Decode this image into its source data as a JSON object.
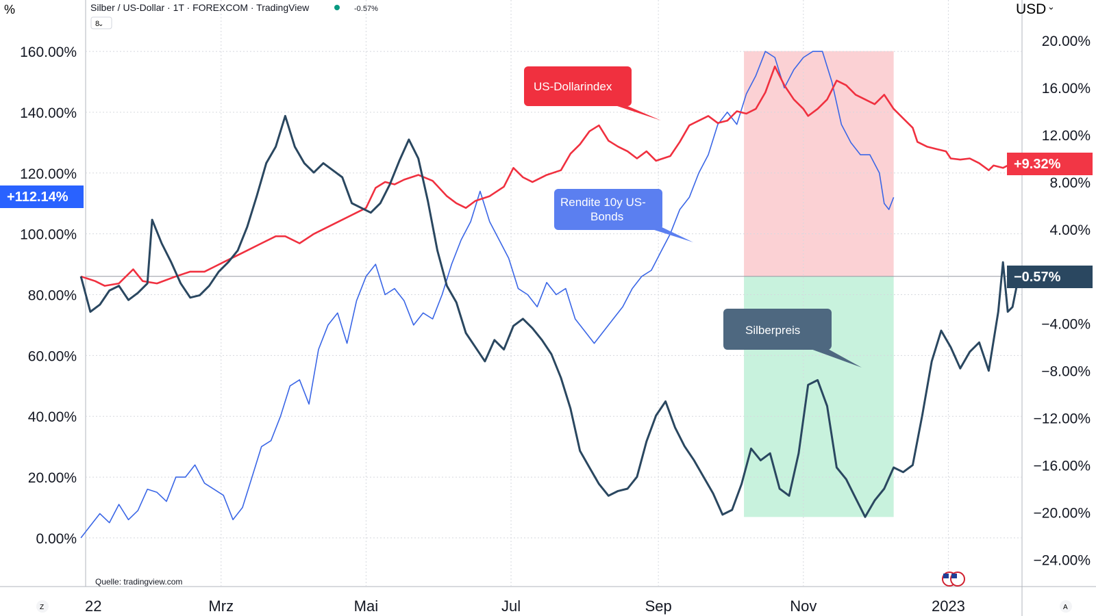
{
  "header": {
    "title": "Silber / US-Dollar · 1T · FOREXCOM · TradingView",
    "change": "-0.57%",
    "indicator_count": "8",
    "left_unit": "%",
    "right_unit": "USD",
    "right_unit_caret": "⌄",
    "source": "Quelle: tradingview.com",
    "corner_left": "Z",
    "corner_right": "A"
  },
  "colors": {
    "silver": "#2a4760",
    "dollar": "#f0303f",
    "yield": "#3a66e6",
    "red_zone": "#fbd1d4",
    "green_zone": "#c8f2dd",
    "grid": "#d5d8de"
  },
  "icons": {
    "flag": "us-flags-icon",
    "dot": "status-dot-icon"
  },
  "badges": {
    "left": "+112.14%",
    "right_red": "+9.32%",
    "right_dark": "−0.57%"
  },
  "callouts": {
    "dollar": "US-Dollarindex",
    "yield_line1": "Rendite 10y US-",
    "yield_line2": "Bonds",
    "silver": "Silberpreis"
  },
  "chart_data": {
    "type": "line",
    "x_ticks": [
      "22",
      "Mrz",
      "Mai",
      "Jul",
      "Sep",
      "Nov",
      "2023"
    ],
    "x_tick_days": [
      0,
      59,
      120,
      181,
      243,
      304,
      365
    ],
    "y_left_ticks": [
      "0.00%",
      "20.00%",
      "40.00%",
      "60.00%",
      "80.00%",
      "100.00%",
      "120.00%",
      "140.00%",
      "160.00%"
    ],
    "y_left_values": [
      0,
      20,
      40,
      60,
      80,
      100,
      120,
      140,
      160
    ],
    "y_left_range": [
      -16,
      176
    ],
    "y_right_ticks": [
      "20.00%",
      "16.00%",
      "12.00%",
      "8.00%",
      "4.00%",
      "−4.00%",
      "−8.00%",
      "−12.00%",
      "−16.00%",
      "−20.00%",
      "−24.00%"
    ],
    "y_right_values": [
      20,
      16,
      12,
      8,
      4,
      -4,
      -8,
      -12,
      -16,
      -20,
      -24
    ],
    "y_right_range": [
      -26.3,
      23.2
    ],
    "zones": {
      "red": {
        "x": [
          279,
          342
        ],
        "y": [
          0,
          19.1
        ]
      },
      "green": {
        "x": [
          279,
          342
        ],
        "y": [
          -20.4,
          0
        ]
      }
    },
    "series": [
      {
        "name": "Rendite 10y US-Bonds",
        "axis": "left",
        "points": [
          [
            0,
            0
          ],
          [
            4,
            4
          ],
          [
            8,
            8
          ],
          [
            12,
            5
          ],
          [
            16,
            11
          ],
          [
            20,
            6
          ],
          [
            24,
            9
          ],
          [
            28,
            16
          ],
          [
            32,
            15
          ],
          [
            36,
            12
          ],
          [
            40,
            20
          ],
          [
            44,
            20
          ],
          [
            48,
            24
          ],
          [
            52,
            18
          ],
          [
            56,
            16
          ],
          [
            60,
            14
          ],
          [
            64,
            6
          ],
          [
            68,
            10
          ],
          [
            72,
            20
          ],
          [
            76,
            30
          ],
          [
            80,
            32
          ],
          [
            84,
            40
          ],
          [
            88,
            50
          ],
          [
            92,
            52
          ],
          [
            96,
            44
          ],
          [
            100,
            62
          ],
          [
            104,
            70
          ],
          [
            108,
            74
          ],
          [
            112,
            64
          ],
          [
            116,
            78
          ],
          [
            120,
            86
          ],
          [
            124,
            90
          ],
          [
            128,
            80
          ],
          [
            132,
            82
          ],
          [
            136,
            78
          ],
          [
            140,
            70
          ],
          [
            144,
            74
          ],
          [
            148,
            72
          ],
          [
            152,
            80
          ],
          [
            156,
            90
          ],
          [
            160,
            98
          ],
          [
            164,
            104
          ],
          [
            168,
            114
          ],
          [
            172,
            104
          ],
          [
            176,
            98
          ],
          [
            180,
            92
          ],
          [
            184,
            82
          ],
          [
            188,
            80
          ],
          [
            192,
            76
          ],
          [
            196,
            84
          ],
          [
            200,
            80
          ],
          [
            204,
            82
          ],
          [
            208,
            72
          ],
          [
            212,
            68
          ],
          [
            216,
            64
          ],
          [
            220,
            68
          ],
          [
            224,
            72
          ],
          [
            228,
            76
          ],
          [
            232,
            82
          ],
          [
            236,
            86
          ],
          [
            240,
            88
          ],
          [
            244,
            94
          ],
          [
            248,
            100
          ],
          [
            252,
            108
          ],
          [
            256,
            112
          ],
          [
            260,
            120
          ],
          [
            264,
            126
          ],
          [
            268,
            136
          ],
          [
            272,
            140
          ],
          [
            276,
            136
          ],
          [
            280,
            146
          ],
          [
            284,
            152
          ],
          [
            288,
            160
          ],
          [
            292,
            158
          ],
          [
            296,
            148
          ],
          [
            300,
            154
          ],
          [
            304,
            158
          ],
          [
            308,
            160
          ],
          [
            312,
            160
          ],
          [
            316,
            150
          ],
          [
            320,
            136
          ],
          [
            324,
            130
          ],
          [
            328,
            126
          ],
          [
            332,
            126
          ],
          [
            336,
            120
          ],
          [
            338,
            110
          ],
          [
            340,
            108
          ],
          [
            342,
            112
          ]
        ]
      },
      {
        "name": "US-Dollarindex",
        "axis": "right",
        "points": [
          [
            0,
            0
          ],
          [
            6,
            -0.4
          ],
          [
            10,
            -0.8
          ],
          [
            16,
            -0.6
          ],
          [
            22,
            0.6
          ],
          [
            26,
            -0.4
          ],
          [
            32,
            -0.6
          ],
          [
            40,
            0
          ],
          [
            46,
            0.4
          ],
          [
            52,
            0.4
          ],
          [
            56,
            0.8
          ],
          [
            60,
            1.2
          ],
          [
            66,
            1.8
          ],
          [
            70,
            2.2
          ],
          [
            76,
            2.8
          ],
          [
            82,
            3.4
          ],
          [
            86,
            3.4
          ],
          [
            92,
            2.8
          ],
          [
            98,
            3.6
          ],
          [
            104,
            4.2
          ],
          [
            110,
            4.8
          ],
          [
            116,
            5.4
          ],
          [
            120,
            5.8
          ],
          [
            124,
            7.5
          ],
          [
            128,
            8.0
          ],
          [
            132,
            7.8
          ],
          [
            136,
            8.2
          ],
          [
            142,
            8.6
          ],
          [
            148,
            8.1
          ],
          [
            154,
            6.8
          ],
          [
            158,
            6.2
          ],
          [
            162,
            5.8
          ],
          [
            166,
            6.4
          ],
          [
            172,
            6.8
          ],
          [
            178,
            7.6
          ],
          [
            182,
            9.2
          ],
          [
            186,
            8.4
          ],
          [
            190,
            8.0
          ],
          [
            196,
            8.6
          ],
          [
            202,
            9.0
          ],
          [
            206,
            10.4
          ],
          [
            210,
            11.2
          ],
          [
            214,
            12.3
          ],
          [
            218,
            12.8
          ],
          [
            222,
            11.5
          ],
          [
            226,
            11.0
          ],
          [
            230,
            10.6
          ],
          [
            234,
            10.0
          ],
          [
            238,
            10.6
          ],
          [
            242,
            9.8
          ],
          [
            248,
            10.2
          ],
          [
            252,
            11.4
          ],
          [
            256,
            12.8
          ],
          [
            260,
            13.2
          ],
          [
            264,
            13.6
          ],
          [
            268,
            13.0
          ],
          [
            272,
            13.2
          ],
          [
            276,
            14.0
          ],
          [
            280,
            13.8
          ],
          [
            284,
            14.2
          ],
          [
            288,
            15.6
          ],
          [
            292,
            17.8
          ],
          [
            296,
            16.2
          ],
          [
            300,
            15.0
          ],
          [
            304,
            14.2
          ],
          [
            306,
            13.6
          ],
          [
            310,
            14.2
          ],
          [
            314,
            15.0
          ],
          [
            318,
            16.6
          ],
          [
            322,
            16.2
          ],
          [
            326,
            15.4
          ],
          [
            330,
            15.0
          ],
          [
            334,
            14.6
          ],
          [
            338,
            15.4
          ],
          [
            342,
            14.2
          ],
          [
            346,
            13.4
          ],
          [
            350,
            12.6
          ],
          [
            352,
            11.4
          ],
          [
            356,
            11.0
          ],
          [
            360,
            10.8
          ],
          [
            364,
            10.6
          ],
          [
            366,
            10.0
          ],
          [
            370,
            9.9
          ],
          [
            374,
            10.0
          ],
          [
            378,
            9.6
          ],
          [
            382,
            9.0
          ],
          [
            384,
            9.4
          ],
          [
            388,
            9.2
          ],
          [
            390,
            9.4
          ]
        ]
      },
      {
        "name": "Silberpreis",
        "axis": "right",
        "points": [
          [
            0,
            0
          ],
          [
            4,
            -3.0
          ],
          [
            8,
            -2.4
          ],
          [
            12,
            -1.2
          ],
          [
            16,
            -0.8
          ],
          [
            20,
            -2.0
          ],
          [
            24,
            -1.4
          ],
          [
            28,
            -0.6
          ],
          [
            30,
            4.8
          ],
          [
            34,
            2.8
          ],
          [
            38,
            1.2
          ],
          [
            42,
            -0.6
          ],
          [
            46,
            -1.8
          ],
          [
            50,
            -1.6
          ],
          [
            54,
            -0.8
          ],
          [
            58,
            0.4
          ],
          [
            62,
            1.2
          ],
          [
            66,
            2.2
          ],
          [
            70,
            4.2
          ],
          [
            74,
            6.8
          ],
          [
            78,
            9.6
          ],
          [
            82,
            11.0
          ],
          [
            86,
            13.6
          ],
          [
            90,
            11.0
          ],
          [
            94,
            9.6
          ],
          [
            98,
            8.8
          ],
          [
            102,
            9.6
          ],
          [
            106,
            9.0
          ],
          [
            110,
            8.4
          ],
          [
            114,
            6.2
          ],
          [
            118,
            5.8
          ],
          [
            122,
            5.4
          ],
          [
            126,
            6.2
          ],
          [
            130,
            7.8
          ],
          [
            134,
            9.8
          ],
          [
            138,
            11.6
          ],
          [
            142,
            10.0
          ],
          [
            146,
            6.4
          ],
          [
            150,
            2.2
          ],
          [
            154,
            -0.8
          ],
          [
            158,
            -2.2
          ],
          [
            162,
            -4.8
          ],
          [
            166,
            -6.0
          ],
          [
            170,
            -7.2
          ],
          [
            174,
            -5.4
          ],
          [
            178,
            -6.2
          ],
          [
            182,
            -4.2
          ],
          [
            186,
            -3.6
          ],
          [
            190,
            -4.4
          ],
          [
            194,
            -5.4
          ],
          [
            198,
            -6.6
          ],
          [
            202,
            -8.6
          ],
          [
            206,
            -11.2
          ],
          [
            210,
            -14.8
          ],
          [
            214,
            -16.2
          ],
          [
            218,
            -17.6
          ],
          [
            222,
            -18.6
          ],
          [
            226,
            -18.2
          ],
          [
            230,
            -18.0
          ],
          [
            234,
            -17.0
          ],
          [
            238,
            -14.0
          ],
          [
            242,
            -11.8
          ],
          [
            246,
            -10.6
          ],
          [
            250,
            -12.8
          ],
          [
            254,
            -14.4
          ],
          [
            258,
            -15.6
          ],
          [
            262,
            -17.0
          ],
          [
            266,
            -18.4
          ],
          [
            270,
            -20.2
          ],
          [
            274,
            -19.8
          ],
          [
            278,
            -17.6
          ],
          [
            282,
            -14.6
          ],
          [
            286,
            -15.6
          ],
          [
            290,
            -15.0
          ],
          [
            294,
            -18.0
          ],
          [
            298,
            -18.6
          ],
          [
            302,
            -15.0
          ],
          [
            306,
            -9.2
          ],
          [
            310,
            -8.8
          ],
          [
            314,
            -11.0
          ],
          [
            318,
            -16.2
          ],
          [
            322,
            -17.2
          ],
          [
            326,
            -18.8
          ],
          [
            330,
            -20.4
          ],
          [
            334,
            -19.0
          ],
          [
            338,
            -18.0
          ],
          [
            342,
            -16.2
          ],
          [
            346,
            -16.6
          ],
          [
            350,
            -16.0
          ],
          [
            354,
            -11.8
          ],
          [
            358,
            -7.2
          ],
          [
            362,
            -4.6
          ],
          [
            366,
            -6.0
          ],
          [
            370,
            -7.8
          ],
          [
            374,
            -6.4
          ],
          [
            378,
            -5.6
          ],
          [
            382,
            -8.0
          ],
          [
            386,
            -3.0
          ],
          [
            388,
            1.2
          ],
          [
            390,
            -3.0
          ],
          [
            392,
            -2.6
          ],
          [
            394,
            -0.57
          ]
        ]
      }
    ],
    "grid": true,
    "legend": "none"
  }
}
